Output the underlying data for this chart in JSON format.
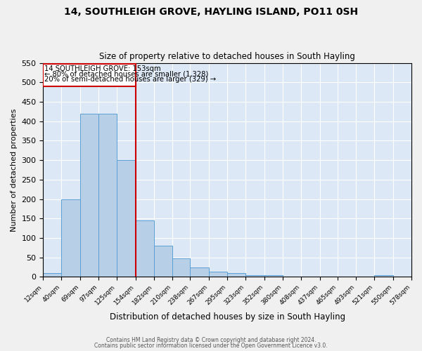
{
  "title": "14, SOUTHLEIGH GROVE, HAYLING ISLAND, PO11 0SH",
  "subtitle": "Size of property relative to detached houses in South Hayling",
  "xlabel": "Distribution of detached houses by size in South Hayling",
  "ylabel": "Number of detached properties",
  "bins": [
    12,
    40,
    69,
    97,
    125,
    154,
    182,
    210,
    238,
    267,
    295,
    323,
    352,
    380,
    408,
    437,
    465,
    493,
    521,
    550,
    578
  ],
  "counts": [
    10,
    200,
    420,
    420,
    300,
    145,
    80,
    48,
    25,
    14,
    9,
    5,
    4,
    0,
    0,
    0,
    0,
    0,
    4,
    0
  ],
  "vline_x": 154,
  "bar_color": "#b8cfe8",
  "bar_edge_color": "#5a9fd4",
  "vline_color": "#cc0000",
  "annotation_line1": "14 SOUTHLEIGH GROVE: 153sqm",
  "annotation_line2": "← 80% of detached houses are smaller (1,328)",
  "annotation_line3": "20% of semi-detached houses are larger (329) →",
  "ylim": [
    0,
    550
  ],
  "yticks": [
    0,
    50,
    100,
    150,
    200,
    250,
    300,
    350,
    400,
    450,
    500,
    550
  ],
  "footnote1": "Contains HM Land Registry data © Crown copyright and database right 2024.",
  "footnote2": "Contains public sector information licensed under the Open Government Licence v3.0.",
  "fig_bg_color": "#f0f0f0",
  "plot_bg_color": "#dce8f5"
}
